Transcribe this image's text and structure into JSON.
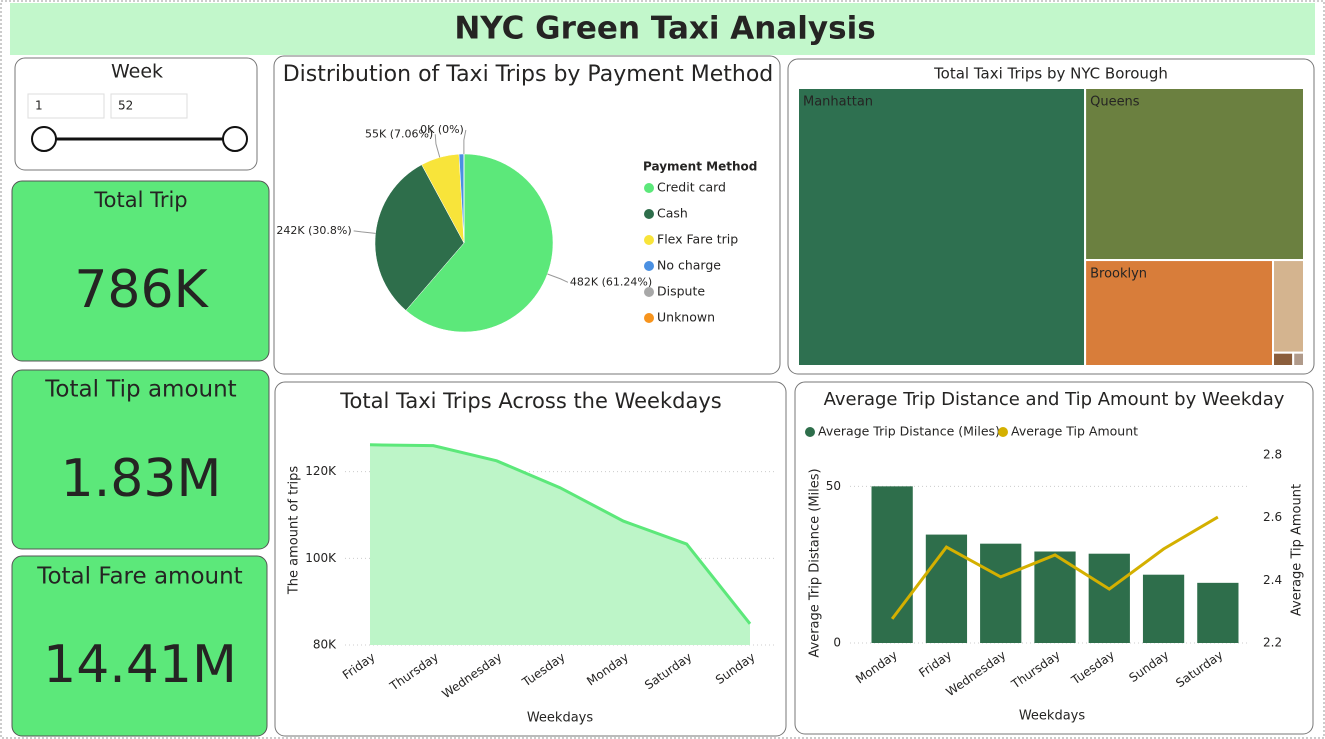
{
  "title": "NYC Green Taxi Analysis",
  "slicer": {
    "label": "Week",
    "from": 1,
    "to": 52
  },
  "cards": [
    {
      "label": "Total Trip",
      "value": "786K"
    },
    {
      "label": "Total Tip amount",
      "value": "1.83M"
    },
    {
      "label": "Total Fare amount",
      "value": "14.41M"
    }
  ],
  "chart_data": [
    {
      "type": "pie",
      "title": "Distribution of Taxi Trips by Payment Method",
      "legend_title": "Payment Method",
      "categories": [
        "Credit card",
        "Cash",
        "Flex Fare trip",
        "No charge",
        "Dispute",
        "Unknown"
      ],
      "values": [
        482000,
        242000,
        55000,
        6700,
        300,
        0
      ],
      "value_labels": [
        "482K (61.24%)",
        "242K (30.8%)",
        "55K (7.06%)",
        null,
        "0K (0%)",
        null
      ],
      "colors": [
        "#5ce87a",
        "#2e6e4b",
        "#f8e43a",
        "#4a90e2",
        "#a8a8a8",
        "#f7941d"
      ]
    },
    {
      "type": "treemap",
      "title": "Total Taxi Trips by NYC Borough",
      "categories": [
        "Manhattan",
        "Queens",
        "Brooklyn",
        null,
        null,
        null
      ],
      "values": [
        445000,
        210000,
        111000,
        16000,
        1500,
        800
      ],
      "colors": [
        "#2e7050",
        "#6b8040",
        "#d87d3a",
        "#d4b48f",
        "#8b5e3c",
        "#b09a8a"
      ]
    },
    {
      "type": "area",
      "title": "Total Taxi Trips Across the Weekdays",
      "x_label": "Weekdays",
      "y_label": "The amount of trips",
      "categories": [
        "Friday",
        "Thursday",
        "Wednesday",
        "Tuesday",
        "Monday",
        "Saturday",
        "Sunday"
      ],
      "values": [
        126200,
        126000,
        122500,
        116300,
        108600,
        103300,
        84900
      ],
      "color": "#5ce87a",
      "area_color": "#bdf5c8",
      "ylim": [
        80000,
        128000
      ],
      "yticks": [
        {
          "value": 80000,
          "label": "80K"
        },
        {
          "value": 100000,
          "label": "100K"
        },
        {
          "value": 120000,
          "label": "120K"
        }
      ],
      "grid": true
    },
    {
      "type": "combo",
      "title": "Average Trip Distance and Tip Amount by Weekday",
      "x_label": "Weekdays",
      "y_label": "Average Trip Distance (Miles)",
      "y2_label": "Average Tip Amount",
      "categories": [
        "Monday",
        "Friday",
        "Wednesday",
        "Thursday",
        "Tuesday",
        "Sunday",
        "Saturday"
      ],
      "series": [
        {
          "name": "Average Trip Distance (Miles)",
          "type": "bar",
          "color": "#2e6e4b",
          "values": [
            50,
            34.6,
            31.7,
            29.2,
            28.5,
            21.8,
            19.2
          ]
        },
        {
          "name": "Average Tip Amount",
          "type": "line",
          "axis": "y2",
          "color": "#d4b000",
          "values": [
            2.277,
            2.506,
            2.411,
            2.481,
            2.372,
            2.5,
            2.602
          ]
        }
      ],
      "ylim": [
        0,
        60
      ],
      "yticks": [
        0,
        50
      ],
      "y2lim": [
        2.2,
        2.8
      ],
      "y2ticks": [
        2.2,
        2.4,
        2.6,
        2.8
      ],
      "grid": true
    }
  ]
}
